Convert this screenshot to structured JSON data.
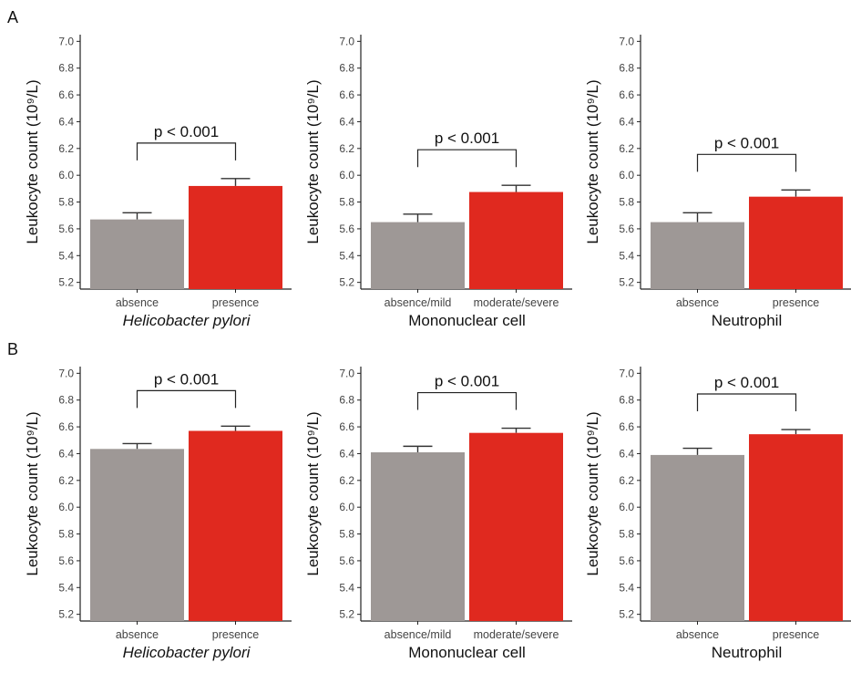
{
  "colors": {
    "absence_bar": "#9e9896",
    "presence_bar": "#e0291f"
  },
  "chart_data": [
    {
      "type": "bar",
      "row": "A",
      "categories": [
        "absence",
        "presence"
      ],
      "values": [
        5.67,
        5.92
      ],
      "error_upper": [
        5.72,
        5.975
      ],
      "xlabel": "Helicobacter pylori",
      "xlabel_italic": true,
      "ylabel": "Leukocyte count (10⁹/L)",
      "ylim": [
        5.15,
        7.05
      ],
      "yticks": [
        "5.2",
        "5.4",
        "5.6",
        "5.8",
        "6.0",
        "6.2",
        "6.4",
        "6.6",
        "6.8",
        "7.0"
      ],
      "annotation": "p < 0.001"
    },
    {
      "type": "bar",
      "row": "A",
      "categories": [
        "absence/mild",
        "moderate/severe"
      ],
      "values": [
        5.65,
        5.875
      ],
      "error_upper": [
        5.71,
        5.925
      ],
      "xlabel": "Mononuclear cell",
      "xlabel_italic": false,
      "ylabel": "Leukocyte count (10⁹/L)",
      "ylim": [
        5.15,
        7.05
      ],
      "yticks": [
        "5.2",
        "5.4",
        "5.6",
        "5.8",
        "6.0",
        "6.2",
        "6.4",
        "6.6",
        "6.8",
        "7.0"
      ],
      "annotation": "p < 0.001"
    },
    {
      "type": "bar",
      "row": "A",
      "categories": [
        "absence",
        "presence"
      ],
      "values": [
        5.65,
        5.84
      ],
      "error_upper": [
        5.72,
        5.89
      ],
      "xlabel": "Neutrophil",
      "xlabel_italic": false,
      "ylabel": "Leukocyte count (10⁹/L)",
      "ylim": [
        5.15,
        7.05
      ],
      "yticks": [
        "5.2",
        "5.4",
        "5.6",
        "5.8",
        "6.0",
        "6.2",
        "6.4",
        "6.6",
        "6.8",
        "7.0"
      ],
      "annotation": "p < 0.001"
    },
    {
      "type": "bar",
      "row": "B",
      "categories": [
        "absence",
        "presence"
      ],
      "values": [
        6.435,
        6.57
      ],
      "error_upper": [
        6.475,
        6.605
      ],
      "xlabel": "Helicobacter pylori",
      "xlabel_italic": true,
      "ylabel": "Leukocyte count (10⁹/L)",
      "ylim": [
        5.15,
        7.05
      ],
      "yticks": [
        "5.2",
        "5.4",
        "5.6",
        "5.8",
        "6.0",
        "6.2",
        "6.4",
        "6.6",
        "6.8",
        "7.0"
      ],
      "annotation": "p < 0.001"
    },
    {
      "type": "bar",
      "row": "B",
      "categories": [
        "absence/mild",
        "moderate/severe"
      ],
      "values": [
        6.41,
        6.555
      ],
      "error_upper": [
        6.455,
        6.59
      ],
      "xlabel": "Mononuclear cell",
      "xlabel_italic": false,
      "ylabel": "Leukocyte count (10⁹/L)",
      "ylim": [
        5.15,
        7.05
      ],
      "yticks": [
        "5.2",
        "5.4",
        "5.6",
        "5.8",
        "6.0",
        "6.2",
        "6.4",
        "6.6",
        "6.8",
        "7.0"
      ],
      "annotation": "p < 0.001"
    },
    {
      "type": "bar",
      "row": "B",
      "categories": [
        "absence",
        "presence"
      ],
      "values": [
        6.39,
        6.545
      ],
      "error_upper": [
        6.44,
        6.58
      ],
      "xlabel": "Neutrophil",
      "xlabel_italic": false,
      "ylabel": "Leukocyte count (10⁹/L)",
      "ylim": [
        5.15,
        7.05
      ],
      "yticks": [
        "5.2",
        "5.4",
        "5.6",
        "5.8",
        "6.0",
        "6.2",
        "6.4",
        "6.6",
        "6.8",
        "7.0"
      ],
      "annotation": "p < 0.001"
    }
  ],
  "panel_labels": [
    "A",
    "B"
  ]
}
